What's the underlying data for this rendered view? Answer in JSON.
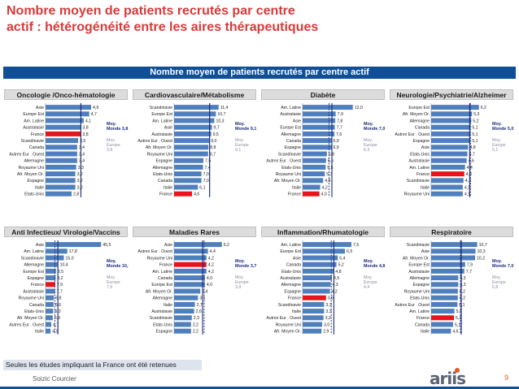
{
  "header": {
    "title_line1": "Nombre moyen de patients recrutés par centre",
    "title_line2": "actif : hétérogénéité entre les aires thérapeutiques"
  },
  "banner": {
    "label": "Nombre moyen de patients recrutés par centre actif"
  },
  "footer": {
    "footnote": "Seules les études impliquant la France ont été retenues",
    "author": "Soizic Courcier",
    "logo": "ariis",
    "page": "9"
  },
  "colors": {
    "bar": "#4f7fbd",
    "highlight": "#e8141b",
    "avg": "#1a2a7a",
    "avg_text": "#1a2a7a",
    "europe_text": "#8a8fa0"
  },
  "chart_data": [
    {
      "type": "bar",
      "title": "Oncologie /Onco-hématologie",
      "categories": [
        "Asie",
        "Europe Est",
        "Am. Latine",
        "Australasie",
        "France",
        "Scandinavie",
        "Canada",
        "Autres Eur . Ouest",
        "Allemagne",
        "Royaume Uni",
        "Afr. Moyen Or.",
        "Espagne",
        "Italie",
        "Etats-Unis"
      ],
      "values": [
        4.9,
        4.7,
        4.1,
        3.8,
        3.8,
        3.5,
        3.4,
        3.4,
        3.4,
        3.3,
        3.2,
        3.2,
        3.2,
        2.8
      ],
      "value_labels": [
        "4,9",
        "4,7",
        "4,1",
        "3,8",
        "3,8",
        "3,5",
        "3,4",
        "3,4",
        "3,4",
        "3,3",
        "3,2",
        "3,2",
        "3,2",
        "2,8"
      ],
      "highlight": "France",
      "xlim": [
        0,
        6.3
      ],
      "avg_monde": {
        "value": 3.8,
        "label": "Moy. Monde 3,8"
      },
      "avg_europe": {
        "value": 3.8,
        "label": "Moy. Europe 3,8"
      }
    },
    {
      "type": "bar",
      "title": "Cardiovasculaire/Métabolisme",
      "categories": [
        "Scandinavie",
        "Europe Est",
        "Am. Latine",
        "Asie",
        "Australasie",
        "Autres Eur . Ouest",
        "Afr. Moyen Or.",
        "Royaume Uni",
        "Espagne",
        "Allemagne",
        "Etats-Unis",
        "Canada",
        "Italie",
        "France"
      ],
      "values": [
        11.4,
        10.7,
        10.3,
        9.7,
        9.5,
        9.0,
        8.8,
        8.7,
        7.5,
        7.4,
        7.0,
        7.0,
        6.1,
        4.6
      ],
      "value_labels": [
        "11,4",
        "10,7",
        "10,3",
        "9,7",
        "9,5",
        "9,0",
        "8,8",
        "8,7",
        "7,5",
        "7,4",
        "7,0",
        "7,0",
        "6,1",
        "4,6"
      ],
      "highlight": "France",
      "xlim": [
        0,
        15
      ],
      "avg_monde": {
        "value": 9.1,
        "label": "Moy. Monde 9,1"
      },
      "avg_europe": {
        "value": 9.1,
        "label": "Moy. Europe 9,1"
      }
    },
    {
      "type": "bar",
      "title": "Diabète",
      "categories": [
        "Am. Latine",
        "Australasie",
        "Asie",
        "Europe Est",
        "Allemagne",
        "Canada",
        "Espagne",
        "Scandinavie",
        "Autres Eur . Ouest",
        "Etats-Unis",
        "Royaume Uni",
        "Afr. Moyen Or.",
        "Italie",
        "France"
      ],
      "values": [
        12.0,
        7.9,
        7.8,
        7.7,
        7.6,
        6.9,
        6.9,
        5.8,
        5.6,
        5.5,
        5.3,
        4.9,
        4.2,
        4.0
      ],
      "value_labels": [
        "12,0",
        "7,9",
        "7,8",
        "7,7",
        "7,6",
        "6,9",
        "6,9",
        "5,8",
        "5,6",
        "5,5",
        "5,3",
        "4,9",
        "4,2",
        "4,0"
      ],
      "highlight": "France",
      "xlim": [
        0,
        14
      ],
      "avg_monde": {
        "value": 7.0,
        "label": "Moy. Monde 7,0"
      },
      "avg_europe": {
        "value": 6.3,
        "label": "Moy. Europe 6,3"
      }
    },
    {
      "type": "bar",
      "title": "Neurologie/Psychiatrie/Alzheimer",
      "categories": [
        "Europe Est",
        "Afr. Moyen Or.",
        "Allemagne",
        "Canada",
        "Autres Eur . Ouest",
        "Espagne",
        "Asie",
        "Etats-Unis",
        "Australasie",
        "Am. Latine",
        "France",
        "Scandinavie",
        "Italie",
        "Royaume Uni"
      ],
      "values": [
        6.2,
        5.3,
        5.2,
        5.1,
        5.1,
        5.1,
        4.8,
        4.7,
        4.6,
        4.4,
        4.3,
        4.2,
        4.1,
        4.1
      ],
      "value_labels": [
        "6,2",
        "5,3",
        "5,2",
        "5,1",
        "5,1",
        "5,1",
        "4,8",
        "4,7",
        "4,6",
        "4,4",
        "4,3",
        "4,2",
        "4,1",
        "4,1"
      ],
      "highlight": "France",
      "xlim": [
        0,
        7.6
      ],
      "avg_monde": {
        "value": 5.0,
        "label": "Moy. Monde 5,0"
      },
      "avg_europe": {
        "value": 5.1,
        "label": "Moy. Europe 5,1"
      }
    },
    {
      "type": "bar",
      "title": "Anti Infectieux/ Virologie/Vaccins",
      "categories": [
        "Asie",
        "Am. Latine",
        "Scandinavie",
        "Allemagne",
        "Europe Est",
        "Espagne",
        "France",
        "Australasie",
        "Royaume Uni",
        "Canada",
        "Etats-Unis",
        "Afr. Moyen Or.",
        "Autres Eur . Ouest",
        "Italie"
      ],
      "values": [
        45.5,
        17.8,
        15.0,
        10.4,
        8.5,
        8.2,
        7.9,
        7.7,
        6.8,
        6.6,
        6.3,
        5.9,
        4.7,
        4.1
      ],
      "value_labels": [
        "45,5",
        "17,8",
        "15,0",
        "10,4",
        "8,5",
        "8,2",
        "7,9",
        "7,7",
        "6,8",
        "6,6",
        "6,3",
        "5,9",
        "4,7",
        "4,1"
      ],
      "highlight": "France",
      "xlim": [
        0,
        48
      ],
      "avg_monde": {
        "value": 10.1,
        "label": "Moy. Monde 10,1"
      },
      "avg_europe": {
        "value": 7.6,
        "label": "Moy. Europe 7,6"
      }
    },
    {
      "type": "bar",
      "title": "Maladies Rares",
      "categories": [
        "Asie",
        "Autres Eur . Ouest",
        "Royaume Uni",
        "France",
        "Am. Latine",
        "Canada",
        "Europe Est",
        "Afr. Moyen Or.",
        "Allemagne",
        "Italie",
        "Australasie",
        "Scandinavie",
        "Etats-Unis",
        "Espagne"
      ],
      "values": [
        6.2,
        4.4,
        4.2,
        4.2,
        4.2,
        4.0,
        4.0,
        3.4,
        3.1,
        2.7,
        2.6,
        2.3,
        2.2,
        2.2
      ],
      "value_labels": [
        "6,2",
        "4,4",
        "4,2",
        "4,2",
        "4,2",
        "4,0",
        "4,0",
        "3,4",
        "3,1",
        "2,7",
        "2,6",
        "2,3",
        "2,2",
        "2,2"
      ],
      "highlight": "France",
      "xlim": [
        0,
        7.6
      ],
      "avg_monde": {
        "value": 3.7,
        "label": "Moy. Monde 3,7"
      },
      "avg_europe": {
        "value": 3.9,
        "label": "Moy. Europe 3,9"
      }
    },
    {
      "type": "bar",
      "title": "Inflammation/Rhumatologie",
      "categories": [
        "Am. Latine",
        "Europe Est",
        "Asie",
        "Canada",
        "Etats-Unis",
        "Australasie",
        "Allemagne",
        "Espagne",
        "France",
        "Scandinavie",
        "Italie",
        "Autres Eur . Ouest",
        "Royaume Uni",
        "Afr. Moyen Or."
      ],
      "values": [
        7.5,
        6.5,
        5.4,
        5.2,
        4.8,
        4.5,
        4.3,
        4.2,
        3.6,
        3.3,
        3.3,
        3.2,
        3.0,
        2.9
      ],
      "value_labels": [
        "7,5",
        "6,5",
        "5,4",
        "5,2",
        "4,8",
        "4,5",
        "4,3",
        "4,2",
        "3,6",
        "3,3",
        "3,3",
        "3,2",
        "3,0",
        "2,9"
      ],
      "highlight": "France",
      "xlim": [
        0,
        9
      ],
      "avg_monde": {
        "value": 4.8,
        "label": "Moy. Monde 4,8"
      },
      "avg_europe": {
        "value": 4.4,
        "label": "Moy. Europe 4,4"
      }
    },
    {
      "type": "bar",
      "title": "Respiratoire",
      "categories": [
        "Scandinavie",
        "Asie",
        "Afr. Moyen Or.",
        "Europe Est",
        "Australasie",
        "Allemagne",
        "Espagne",
        "Royaume Uni",
        "Etats-Unis",
        "Autres Eur . Ouest",
        "Am. Latine",
        "France",
        "Canada",
        "Italie"
      ],
      "values": [
        10.7,
        10.3,
        10.2,
        7.9,
        7.7,
        6.3,
        6.3,
        6.2,
        6.2,
        6.1,
        5.4,
        5.3,
        5.1,
        4.6
      ],
      "value_labels": [
        "10,7",
        "10,3",
        "10,2",
        "7,9",
        "7,7",
        "6,3",
        "6,3",
        "6,2",
        "6,2",
        "6,1",
        "5,4",
        "5,3",
        "5,1",
        "4,6"
      ],
      "highlight": "France",
      "xlim": [
        0,
        13.6
      ],
      "avg_monde": {
        "value": 7.0,
        "label": "Moy. Monde 7,0"
      },
      "avg_europe": {
        "value": 6.8,
        "label": "Moy. Europe 6,8"
      }
    }
  ]
}
